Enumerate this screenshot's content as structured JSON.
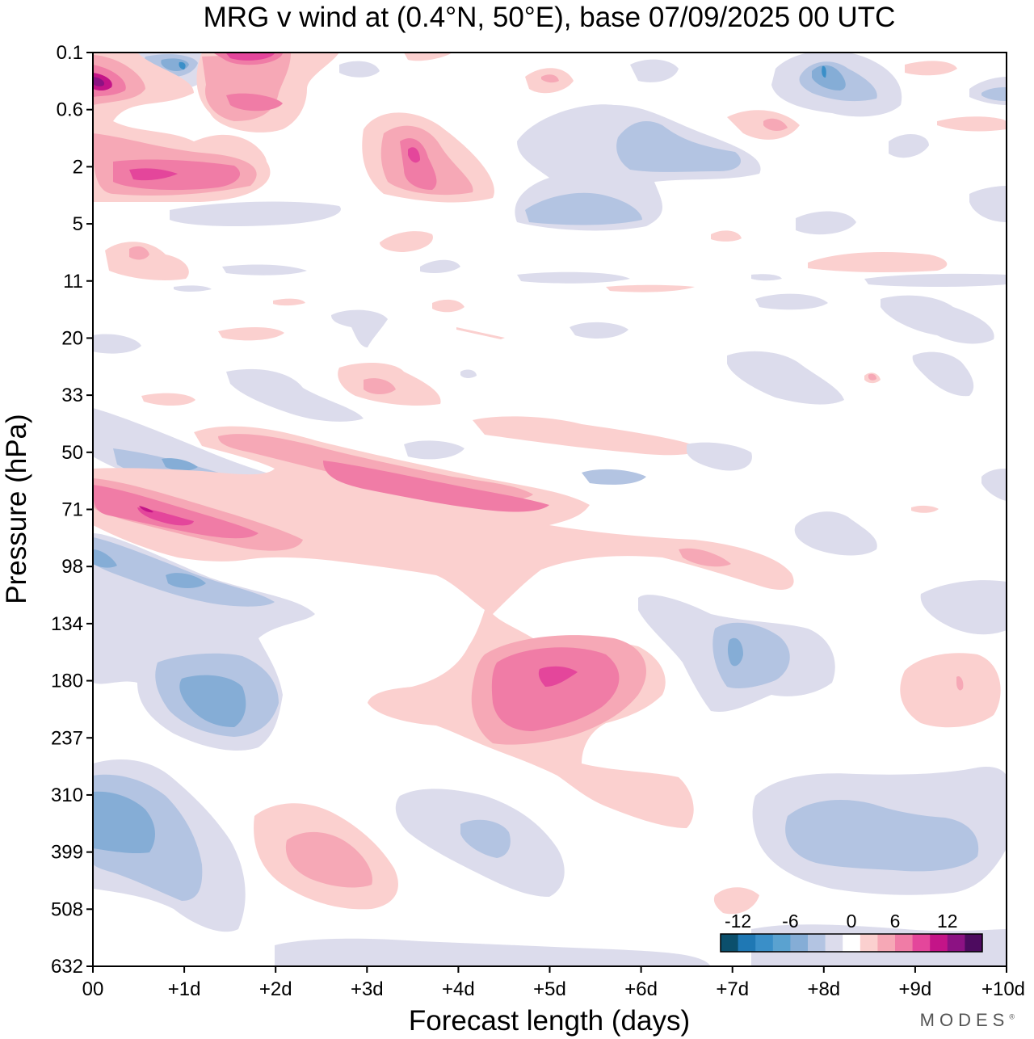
{
  "title": "MRG v wind at (0.4°N, 50°E),  base 07/09/2025  00 UTC",
  "brand": {
    "name": "MODES",
    "mark": "®"
  },
  "chart_data": {
    "type": "heatmap",
    "subtype": "filled-contour",
    "title": "MRG v wind at (0.4°N, 50°E),  base 07/09/2025  00 UTC",
    "xlabel": "Forecast length (days)",
    "ylabel": "Pressure (hPa)",
    "x_ticks": [
      {
        "value": 0,
        "label": "00"
      },
      {
        "value": 1,
        "label": "+1d"
      },
      {
        "value": 2,
        "label": "+2d"
      },
      {
        "value": 3,
        "label": "+3d"
      },
      {
        "value": 4,
        "label": "+4d"
      },
      {
        "value": 5,
        "label": "+5d"
      },
      {
        "value": 6,
        "label": "+6d"
      },
      {
        "value": 7,
        "label": "+7d"
      },
      {
        "value": 8,
        "label": "+8d"
      },
      {
        "value": 9,
        "label": "+9d"
      },
      {
        "value": 10,
        "label": "+10d"
      }
    ],
    "y_ticks": [
      "0.1",
      "0.6",
      "2",
      "5",
      "11",
      "20",
      "33",
      "50",
      "71",
      "98",
      "134",
      "180",
      "237",
      "310",
      "399",
      "508",
      "632"
    ],
    "xlim": [
      0,
      10
    ],
    "ylim": [
      "0.1",
      "632"
    ],
    "legend_position": "bottom-right",
    "colorbar": {
      "tick_labels": [
        "-12",
        "-6",
        "0",
        "6",
        "12"
      ],
      "levels": [
        -14,
        -12,
        -10,
        -8,
        -6,
        -4,
        -2,
        2,
        4,
        6,
        8,
        10,
        12,
        14
      ],
      "colors": [
        "#0b4f6c",
        "#1f78b4",
        "#3a8fc8",
        "#5aa2d0",
        "#85add6",
        "#b3c4e2",
        "#dcdcec",
        "#ffffff",
        "#fbd0cf",
        "#f6a8b6",
        "#f07ca6",
        "#e4469b",
        "#c41488",
        "#8c1283",
        "#4d0b5f"
      ]
    },
    "features": [
      {
        "name": "stratosphere-pos-top-left",
        "sign": "pos",
        "level": 4,
        "x": 0.0,
        "y": 1.3
      },
      {
        "name": "pos-2hpa-day1",
        "sign": "pos",
        "level": 4,
        "x": 0.6,
        "y": 2.1
      },
      {
        "name": "pos-3d-upper",
        "sign": "pos",
        "level": 3,
        "x": 3.5,
        "y": 1.8
      },
      {
        "name": "neg-top-day1",
        "sign": "neg",
        "level": 3,
        "x": 1.0,
        "y": 0.3
      },
      {
        "name": "neg-top-day8",
        "sign": "neg",
        "level": 3,
        "x": 8.0,
        "y": 0.35
      },
      {
        "name": "neg-upper-day6",
        "sign": "neg",
        "level": 2,
        "x": 6.5,
        "y": 2.2
      },
      {
        "name": "descending-pos-band",
        "sign": "pos",
        "level": 4,
        "x_start": 0.0,
        "x_end": 5.0,
        "p_start": 71,
        "p_end": 60
      },
      {
        "name": "descending-neg-band",
        "sign": "neg",
        "level": 3,
        "x_start": 0.3,
        "x_end": 2.8,
        "p_start": 55,
        "p_end": 70
      },
      {
        "name": "pos-180hpa-day5",
        "sign": "pos",
        "level": 4,
        "x": 5.0,
        "y": 180
      },
      {
        "name": "neg-180hpa-day1",
        "sign": "neg",
        "level": 3,
        "x": 1.3,
        "y": 190
      },
      {
        "name": "neg-160hpa-day7",
        "sign": "neg",
        "level": 2,
        "x": 7.0,
        "y": 165
      },
      {
        "name": "pos-190hpa-day9.5",
        "sign": "pos",
        "level": 2,
        "x": 9.5,
        "y": 185
      },
      {
        "name": "neg-350hpa-day0",
        "sign": "neg",
        "level": 3,
        "x": 0.2,
        "y": 360
      },
      {
        "name": "pos-400hpa-day2.8",
        "sign": "pos",
        "level": 3,
        "x": 2.8,
        "y": 410
      },
      {
        "name": "neg-380hpa-day4",
        "sign": "neg",
        "level": 2,
        "x": 4.0,
        "y": 390
      },
      {
        "name": "neg-370hpa-day8.8",
        "sign": "neg",
        "level": 2,
        "x": 8.8,
        "y": 370
      }
    ]
  }
}
